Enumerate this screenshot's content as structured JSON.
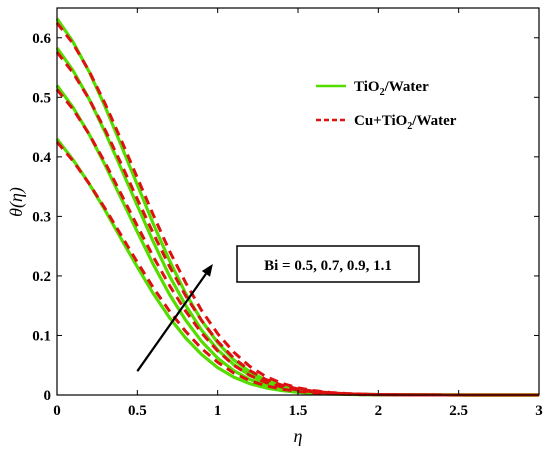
{
  "chart_data": {
    "type": "line",
    "xlabel": "η",
    "ylabel": "θ(η)",
    "xlim": [
      0,
      3
    ],
    "ylim": [
      0,
      0.65
    ],
    "xticks": [
      0,
      0.5,
      1,
      1.5,
      2,
      2.5,
      3
    ],
    "xtick_labels": [
      "0",
      "0.5",
      "1",
      "1.5",
      "2",
      "2.5",
      "3"
    ],
    "yticks": [
      0,
      0.1,
      0.2,
      0.3,
      0.4,
      0.5,
      0.6
    ],
    "ytick_labels": [
      "0",
      "0.1",
      "0.2",
      "0.3",
      "0.4",
      "0.5",
      "0.6"
    ],
    "grid": false,
    "legend_position": "top-right",
    "legend": [
      {
        "label": "TiO",
        "sub": "2",
        "suffix": "/Water",
        "color": "#55dd00",
        "dash": "solid"
      },
      {
        "label": "Cu+TiO",
        "sub": "2",
        "suffix": "/Water",
        "color": "#dd1111",
        "dash": "dashed"
      }
    ],
    "annotation": {
      "text": "Bi = 0.5, 0.7, 0.9, 1.1",
      "arrow_from": [
        0.5,
        0.04
      ],
      "arrow_to": [
        0.97,
        0.22
      ]
    },
    "x": [
      0,
      0.1,
      0.2,
      0.3,
      0.4,
      0.5,
      0.6,
      0.7,
      0.8,
      0.9,
      1.0,
      1.1,
      1.2,
      1.3,
      1.4,
      1.5,
      1.6,
      1.7,
      1.8,
      1.9,
      2.0,
      2.2,
      2.4,
      2.6,
      2.8,
      3.0
    ],
    "series": [
      {
        "name": "TiO2/Water",
        "bi": "0.5",
        "values": [
          0.43,
          0.395,
          0.355,
          0.31,
          0.262,
          0.215,
          0.17,
          0.13,
          0.096,
          0.068,
          0.046,
          0.03,
          0.019,
          0.012,
          0.0075,
          0.0045,
          0.0027,
          0.0016,
          0.001,
          0.0006,
          0.0004,
          0.0002,
          0.0001,
          5e-05,
          2e-05,
          0.0
        ]
      },
      {
        "name": "TiO2/Water",
        "bi": "0.7",
        "values": [
          0.52,
          0.483,
          0.438,
          0.386,
          0.33,
          0.274,
          0.219,
          0.169,
          0.126,
          0.09,
          0.062,
          0.041,
          0.026,
          0.0165,
          0.0103,
          0.0062,
          0.0037,
          0.0022,
          0.0013,
          0.0008,
          0.0005,
          0.0002,
          0.0001,
          5e-05,
          2e-05,
          0.0
        ]
      },
      {
        "name": "TiO2/Water",
        "bi": "0.9",
        "values": [
          0.583,
          0.545,
          0.497,
          0.441,
          0.38,
          0.318,
          0.257,
          0.2,
          0.151,
          0.109,
          0.076,
          0.051,
          0.033,
          0.021,
          0.013,
          0.0079,
          0.0047,
          0.0028,
          0.0017,
          0.001,
          0.0006,
          0.0002,
          0.0001,
          5e-05,
          2e-05,
          0.0
        ]
      },
      {
        "name": "TiO2/Water",
        "bi": "1.1",
        "values": [
          0.632,
          0.593,
          0.543,
          0.484,
          0.419,
          0.353,
          0.287,
          0.226,
          0.171,
          0.125,
          0.088,
          0.059,
          0.039,
          0.025,
          0.0155,
          0.0094,
          0.0056,
          0.0033,
          0.002,
          0.0012,
          0.0007,
          0.0003,
          0.0001,
          5e-05,
          2e-05,
          0.0
        ]
      },
      {
        "name": "Cu+TiO2/Water",
        "bi": "0.5",
        "values": [
          0.425,
          0.393,
          0.355,
          0.313,
          0.268,
          0.223,
          0.18,
          0.141,
          0.107,
          0.078,
          0.055,
          0.037,
          0.024,
          0.0155,
          0.0098,
          0.006,
          0.0036,
          0.0021,
          0.0012,
          0.0007,
          0.0004,
          0.0002,
          0.0001,
          5e-05,
          2e-05,
          0.0
        ]
      },
      {
        "name": "Cu+TiO2/Water",
        "bi": "0.7",
        "values": [
          0.513,
          0.48,
          0.438,
          0.39,
          0.337,
          0.284,
          0.232,
          0.184,
          0.141,
          0.104,
          0.074,
          0.05,
          0.033,
          0.021,
          0.0133,
          0.0082,
          0.005,
          0.003,
          0.0017,
          0.001,
          0.0006,
          0.0002,
          0.0001,
          5e-05,
          2e-05,
          0.0
        ]
      },
      {
        "name": "Cu+TiO2/Water",
        "bi": "0.9",
        "values": [
          0.576,
          0.541,
          0.497,
          0.445,
          0.388,
          0.329,
          0.271,
          0.216,
          0.167,
          0.125,
          0.09,
          0.062,
          0.041,
          0.026,
          0.0166,
          0.0102,
          0.0062,
          0.0037,
          0.0022,
          0.0013,
          0.0007,
          0.0003,
          0.0001,
          5e-05,
          2e-05,
          0.0
        ]
      },
      {
        "name": "Cu+TiO2/Water",
        "bi": "1.1",
        "values": [
          0.625,
          0.59,
          0.544,
          0.489,
          0.428,
          0.365,
          0.302,
          0.242,
          0.189,
          0.142,
          0.103,
          0.072,
          0.048,
          0.031,
          0.0195,
          0.012,
          0.0073,
          0.0043,
          0.0025,
          0.0015,
          0.0009,
          0.0003,
          0.0001,
          5e-05,
          2e-05,
          0.0
        ]
      }
    ]
  }
}
